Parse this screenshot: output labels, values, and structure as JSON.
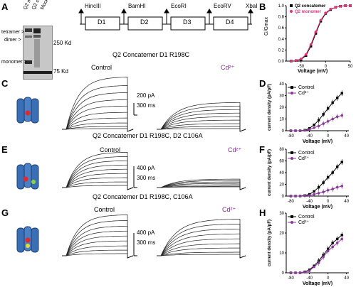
{
  "panels": {
    "A": "A",
    "B": "B",
    "C": "C",
    "D": "D",
    "E": "E",
    "F": "F",
    "G": "G",
    "H": "H"
  },
  "blot": {
    "lanes": [
      "Q2 monomer",
      "Q2 concatamer",
      "Mock"
    ],
    "left_labels": {
      "tetramer": "tetramer >",
      "dimer": "dimer >",
      "monomer": "monomer >"
    },
    "markers": {
      "kd250": "250 Kd",
      "kd75": "75 Kd"
    }
  },
  "construct": {
    "sites": [
      "HincIII",
      "BamHI",
      "EcoRI",
      "EcoRV",
      "XbaI"
    ],
    "domains": [
      "D1",
      "D2",
      "D3",
      "D4"
    ]
  },
  "panelB_chart": {
    "ylabel": "G/Gmax",
    "xlabel": "Voltage (mV)",
    "yticks": [
      "1.0",
      "0.8",
      "0.6",
      "0.4",
      "0.2",
      "0.0"
    ],
    "xticks": [
      "-50",
      "0",
      "50"
    ],
    "legend": [
      "Q2 concatemer",
      "Q2 monomer"
    ],
    "colors": {
      "concatemer": "#000000",
      "monomer": "#e0357a"
    }
  },
  "rows": [
    {
      "title": "Q2 Concatemer D1 R198C",
      "control": "Control",
      "cd": "Cd²⁺",
      "scale_current": "200 pA",
      "scale_time": "300 ms"
    },
    {
      "title": "Q2 Concatemer D1 R198C, D2 C106A",
      "control": "Control",
      "cd": "Cd²⁺",
      "scale_current": "400 pA",
      "scale_time": "300 ms"
    },
    {
      "title": "Q2 Concatemer D1 R198C, C106A",
      "control": "Control",
      "cd": "Cd²⁺",
      "scale_current": "400 pA",
      "scale_time": "300 ms"
    }
  ],
  "iv_plots": {
    "ylabel": "current density (pA/pF)",
    "xlabel": "Voltage (mV)",
    "legend": [
      "Control",
      "Cd²⁺"
    ],
    "D": {
      "yticks": [
        "40",
        "30",
        "20",
        "10",
        "0"
      ]
    },
    "F": {
      "yticks": [
        "80",
        "60",
        "40",
        "20",
        "0"
      ]
    },
    "H": {
      "yticks": [
        "30",
        "20",
        "10",
        "0"
      ]
    },
    "xticks": [
      "-80",
      "-40",
      "0",
      "40"
    ]
  },
  "chart_data": [
    {
      "type": "scatter",
      "panel": "B",
      "xlabel": "Voltage (mV)",
      "ylabel": "G/Gmax",
      "xlim": [
        -80,
        50
      ],
      "ylim": [
        0,
        1.0
      ],
      "x": [
        -70,
        -60,
        -50,
        -40,
        -30,
        -20,
        -10,
        0,
        10,
        20,
        30,
        40,
        50
      ],
      "series": [
        {
          "name": "Q2 concatemer",
          "values": [
            0.0,
            0.01,
            0.03,
            0.1,
            0.27,
            0.5,
            0.72,
            0.86,
            0.93,
            0.97,
            0.99,
            1.0,
            1.0
          ]
        },
        {
          "name": "Q2 monomer",
          "values": [
            0.0,
            0.01,
            0.04,
            0.12,
            0.3,
            0.53,
            0.74,
            0.87,
            0.94,
            0.97,
            0.99,
            1.0,
            1.0
          ]
        }
      ]
    },
    {
      "type": "line",
      "panel": "D",
      "xlabel": "Voltage (mV)",
      "ylabel": "current density (pA/pF)",
      "xlim": [
        -90,
        45
      ],
      "ylim": [
        0,
        40
      ],
      "x": [
        -80,
        -70,
        -60,
        -50,
        -40,
        -30,
        -20,
        -10,
        0,
        10,
        20,
        30
      ],
      "series": [
        {
          "name": "Control",
          "values": [
            0,
            0,
            0,
            0.5,
            2,
            5,
            9,
            14,
            19,
            24,
            28,
            32
          ]
        },
        {
          "name": "Cd²⁺",
          "values": [
            0,
            0,
            0,
            0.3,
            1,
            2.5,
            4,
            6,
            8,
            10,
            12,
            13
          ]
        }
      ]
    },
    {
      "type": "line",
      "panel": "F",
      "xlabel": "Voltage (mV)",
      "ylabel": "current density (pA/pF)",
      "xlim": [
        -90,
        45
      ],
      "ylim": [
        0,
        80
      ],
      "x": [
        -80,
        -70,
        -60,
        -50,
        -40,
        -30,
        -20,
        -10,
        0,
        10,
        20,
        30
      ],
      "series": [
        {
          "name": "Control",
          "values": [
            0,
            0,
            0,
            1,
            3,
            8,
            15,
            23,
            32,
            40,
            50,
            58
          ]
        },
        {
          "name": "Cd²⁺",
          "values": [
            0,
            0,
            0,
            0.5,
            1,
            3,
            5,
            7,
            10,
            12,
            15,
            17
          ]
        }
      ]
    },
    {
      "type": "line",
      "panel": "H",
      "xlabel": "Voltage (mV)",
      "ylabel": "current density (pA/pF)",
      "xlim": [
        -90,
        45
      ],
      "ylim": [
        0,
        30
      ],
      "x": [
        -80,
        -70,
        -60,
        -50,
        -40,
        -30,
        -20,
        -10,
        0,
        10,
        20,
        30
      ],
      "series": [
        {
          "name": "Control",
          "values": [
            0,
            0,
            0,
            0.5,
            1.5,
            3.5,
            6,
            9,
            12,
            15,
            17,
            19
          ]
        },
        {
          "name": "Cd²⁺",
          "values": [
            0,
            0,
            0,
            0.3,
            1,
            3,
            5,
            8,
            11,
            13,
            15,
            17
          ]
        }
      ]
    }
  ]
}
